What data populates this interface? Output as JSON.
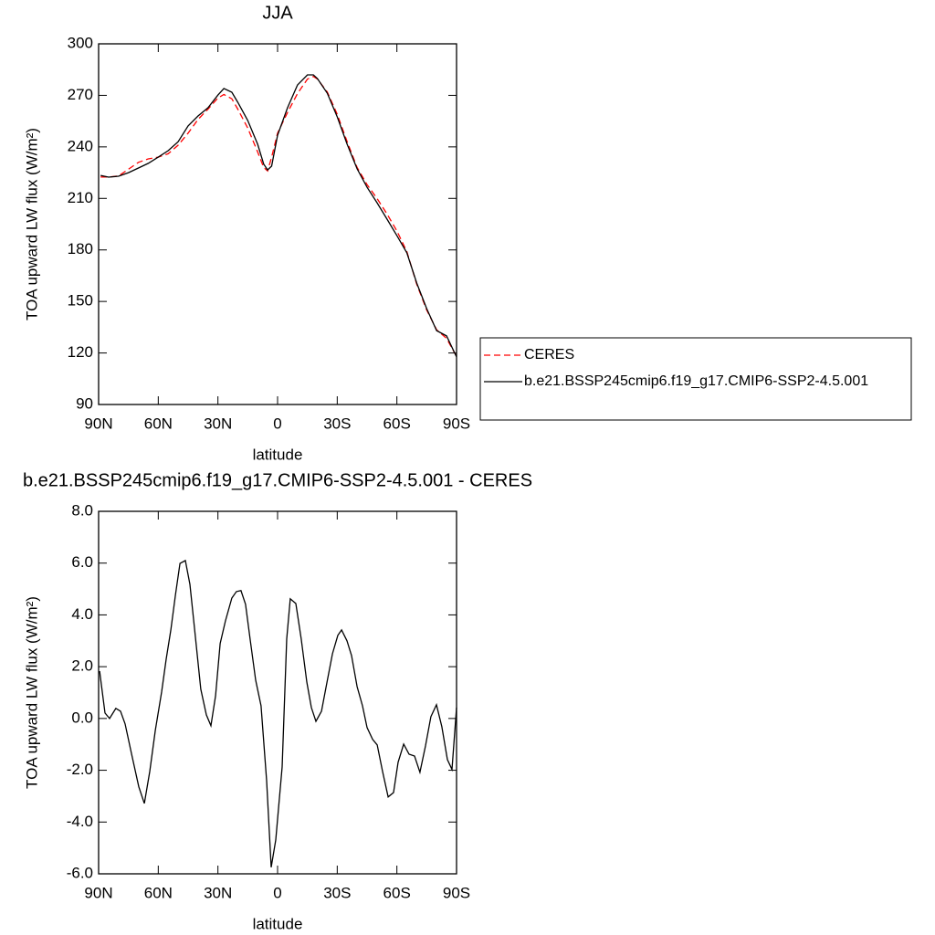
{
  "chart_data": [
    {
      "type": "line",
      "title": "JJA",
      "xlabel": "latitude",
      "ylabel": "TOA upward LW flux (W/m²)",
      "x": [
        89,
        85,
        80,
        75,
        70,
        65,
        60,
        55,
        50,
        45,
        40,
        35,
        30,
        27,
        23,
        20,
        15,
        10,
        7,
        5,
        3,
        0,
        -5,
        -10,
        -15,
        -18,
        -20,
        -25,
        -30,
        -35,
        -40,
        -45,
        -50,
        -55,
        -60,
        -65,
        -70,
        -75,
        -80,
        -85,
        -90
      ],
      "series": [
        {
          "name": "CERES",
          "color": "#ff0000",
          "linestyle": "dashed",
          "values": [
            222.5,
            222.5,
            223,
            227,
            231,
            233,
            234,
            236,
            241,
            248,
            256,
            262,
            268.5,
            270.5,
            268,
            262,
            251,
            237,
            228,
            226,
            234,
            248,
            260,
            271,
            279.5,
            281,
            279.5,
            272,
            259,
            243,
            228,
            218,
            210,
            201,
            191,
            179,
            160,
            145,
            133.5,
            128.5,
            118
          ]
        },
        {
          "name": "b.e21.BSSP245cmip6.f19_g17.CMIP6-SSP2-4.5.001",
          "color": "#000000",
          "linestyle": "solid",
          "values": [
            223.4,
            222.4,
            222.9,
            225,
            227.7,
            230.4,
            234,
            237.8,
            243,
            252.2,
            258,
            262.8,
            270.2,
            274,
            271.8,
            266,
            255.4,
            241.5,
            230,
            226.6,
            228.8,
            246.8,
            262.8,
            276,
            281.9,
            281.9,
            279.8,
            271.3,
            257.5,
            241.5,
            227.2,
            216.5,
            207.5,
            198,
            188.3,
            178.3,
            160.7,
            145.8,
            133,
            129.9,
            117.7
          ]
        }
      ],
      "xlim": [
        90,
        -90
      ],
      "xticks": [
        {
          "value": 90,
          "label": "90N"
        },
        {
          "value": 60,
          "label": "60N"
        },
        {
          "value": 30,
          "label": "30N"
        },
        0,
        {
          "value": -30,
          "label": "30S"
        },
        {
          "value": -60,
          "label": "60S"
        },
        {
          "value": -90,
          "label": "90S"
        }
      ],
      "ylim": [
        90,
        300
      ],
      "yticks": [
        90,
        120,
        150,
        180,
        210,
        240,
        270,
        300
      ],
      "legend": "right"
    },
    {
      "type": "line",
      "title": "b.e21.BSSP245cmip6.f19_g17.CMIP6-SSP2-4.5.001 - CERES",
      "xlabel": "latitude",
      "ylabel": "TOA upward LW flux (W/m²)",
      "x": [
        89.5,
        86.8,
        84.5,
        81.3,
        79,
        76.7,
        73.5,
        69.8,
        67,
        64.3,
        61.5,
        58.3,
        56,
        53.7,
        51.4,
        49.1,
        46.4,
        44.1,
        41.8,
        38.6,
        35.8,
        33.5,
        31.2,
        28.9,
        26.2,
        23,
        20.7,
        18.4,
        16.1,
        13.8,
        11,
        8.3,
        5.5,
        3.2,
        0.9,
        -2.3,
        -4.6,
        -6.4,
        -9.2,
        -11.9,
        -14.7,
        -17,
        -19.3,
        -22.1,
        -24.8,
        -27.6,
        -30.3,
        -32.2,
        -34.9,
        -37.2,
        -40,
        -42.7,
        -45,
        -47.8,
        -50.1,
        -52.8,
        -55.6,
        -58.3,
        -60.6,
        -63.4,
        -66.1,
        -68.9,
        -71.6,
        -74.4,
        -77.1,
        -79.9,
        -82.6,
        -85.4,
        -87.7,
        -90
      ],
      "values": [
        1.83,
        0.21,
        0.0,
        0.39,
        0.28,
        -0.21,
        -1.34,
        -2.64,
        -3.28,
        -2.05,
        -0.46,
        1.02,
        2.29,
        3.42,
        4.76,
        5.99,
        6.1,
        5.18,
        3.49,
        1.13,
        0.14,
        -0.28,
        0.88,
        2.89,
        3.77,
        4.65,
        4.9,
        4.94,
        4.41,
        3.07,
        1.48,
        0.49,
        -2.4,
        -5.75,
        -4.69,
        -1.87,
        3.07,
        4.62,
        4.44,
        3.07,
        1.41,
        0.42,
        -0.11,
        0.28,
        1.38,
        2.5,
        3.21,
        3.42,
        3.0,
        2.43,
        1.23,
        0.49,
        -0.35,
        -0.81,
        -1.02,
        -2.05,
        -3.03,
        -2.86,
        -1.69,
        -0.99,
        -1.38,
        -1.45,
        -2.08,
        -1.06,
        0.07,
        0.53,
        -0.32,
        -1.59,
        -1.97,
        0.42
      ],
      "color": "#000000",
      "xlim": [
        90,
        -90
      ],
      "xticks": [
        {
          "value": 90,
          "label": "90N"
        },
        {
          "value": 60,
          "label": "60N"
        },
        {
          "value": 30,
          "label": "30N"
        },
        0,
        {
          "value": -30,
          "label": "30S"
        },
        {
          "value": -60,
          "label": "60S"
        },
        {
          "value": -90,
          "label": "90S"
        }
      ],
      "ylim": [
        -6,
        8
      ],
      "yticks": [
        {
          "value": -6,
          "label": "-6.0"
        },
        {
          "value": -4,
          "label": "-4.0"
        },
        {
          "value": -2,
          "label": "-2.0"
        },
        {
          "value": 0,
          "label": "0.0"
        },
        {
          "value": 2,
          "label": "2.0"
        },
        {
          "value": 4,
          "label": "4.0"
        },
        {
          "value": 6,
          "label": "6.0"
        },
        {
          "value": 8,
          "label": "8.0"
        }
      ]
    }
  ]
}
